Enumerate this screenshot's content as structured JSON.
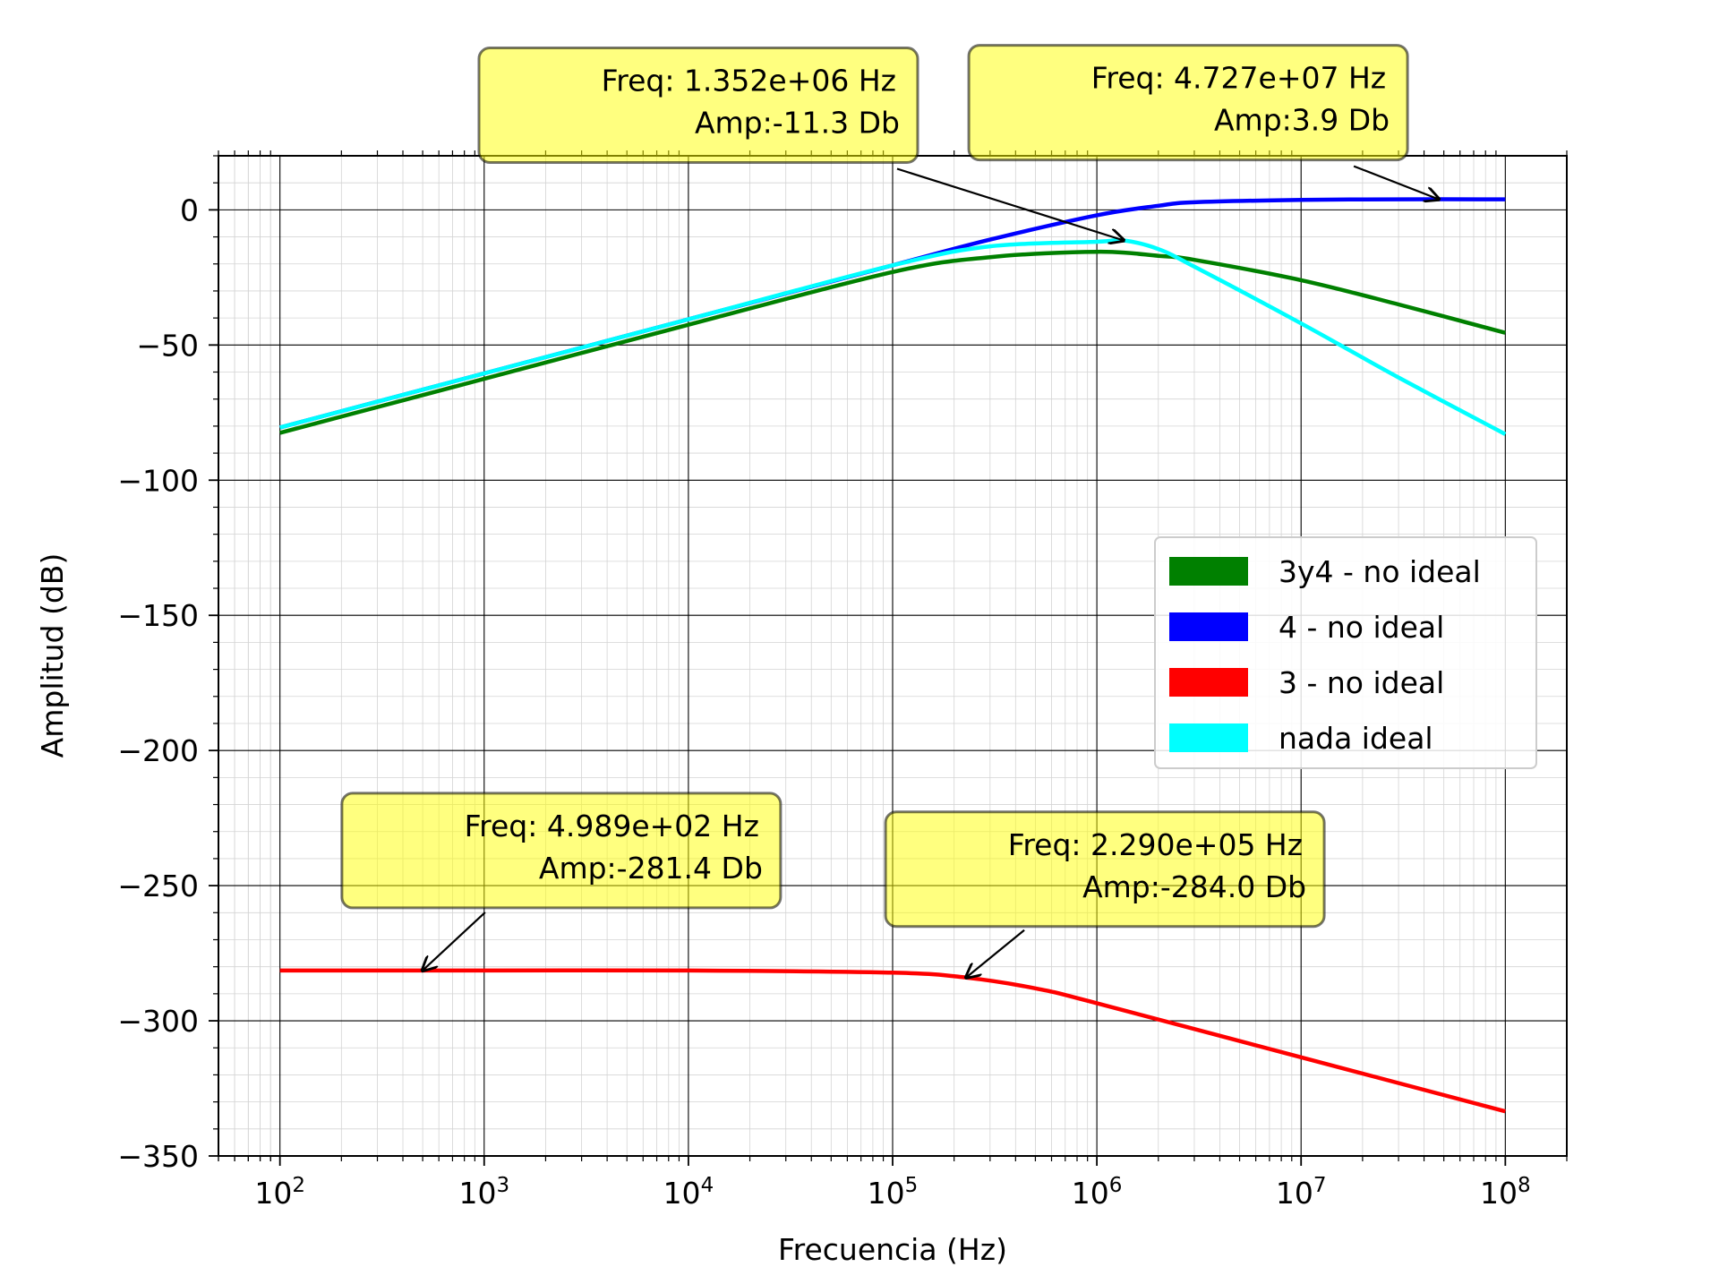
{
  "chart_data": {
    "type": "line",
    "xlabel": "Frecuencia (Hz)",
    "ylabel": "Amplitud (dB)",
    "x_scale": "log",
    "xlim": [
      50,
      200000000
    ],
    "ylim": [
      -350,
      20
    ],
    "grid": true,
    "legend_position": "right",
    "x_ticks": [
      {
        "value": 100,
        "base": "10",
        "exp": "2"
      },
      {
        "value": 1000,
        "base": "10",
        "exp": "3"
      },
      {
        "value": 10000,
        "base": "10",
        "exp": "4"
      },
      {
        "value": 100000,
        "base": "10",
        "exp": "5"
      },
      {
        "value": 1000000,
        "base": "10",
        "exp": "6"
      },
      {
        "value": 10000000,
        "base": "10",
        "exp": "7"
      },
      {
        "value": 100000000,
        "base": "10",
        "exp": "8"
      }
    ],
    "y_ticks": [
      {
        "value": 0,
        "label": "0"
      },
      {
        "value": -50,
        "label": "−50"
      },
      {
        "value": -100,
        "label": "−100"
      },
      {
        "value": -150,
        "label": "−150"
      },
      {
        "value": -200,
        "label": "−200"
      },
      {
        "value": -250,
        "label": "−250"
      },
      {
        "value": -300,
        "label": "−300"
      },
      {
        "value": -350,
        "label": "−350"
      }
    ],
    "series": [
      {
        "name": "3y4 - no ideal",
        "color": "#008000",
        "x": [
          100,
          1000,
          10000,
          100000,
          300000,
          1000000,
          2000000,
          3000000,
          10000000,
          30000000,
          100000000
        ],
        "y": [
          -82.5,
          -62.5,
          -42.5,
          -23,
          -17.5,
          -15.5,
          -17,
          -18.5,
          -26,
          -35,
          -45.5
        ]
      },
      {
        "name": "4 - no ideal",
        "color": "#0000ff",
        "x": [
          100,
          1000,
          10000,
          100000,
          300000,
          1000000,
          2000000,
          3000000,
          10000000,
          30000000,
          100000000
        ],
        "y": [
          -80.5,
          -60.5,
          -40.5,
          -20.5,
          -11,
          -2,
          1.5,
          2.8,
          3.7,
          3.9,
          3.9
        ]
      },
      {
        "name": "3 - no ideal",
        "color": "#ff0000",
        "x": [
          100,
          1000,
          10000,
          100000,
          229000,
          500000,
          1000000,
          10000000,
          100000000
        ],
        "y": [
          -281.4,
          -281.4,
          -281.4,
          -282.2,
          -284,
          -288,
          -293.5,
          -313.5,
          -333.5
        ]
      },
      {
        "name": "nada ideal",
        "color": "#00ffff",
        "x": [
          100,
          1000,
          10000,
          100000,
          300000,
          1000000,
          1352000,
          2000000,
          3000000,
          10000000,
          30000000,
          100000000
        ],
        "y": [
          -80.5,
          -60.5,
          -40.5,
          -20.5,
          -13.5,
          -11.8,
          -11.3,
          -14.5,
          -21,
          -42,
          -62,
          -83
        ]
      }
    ],
    "annotations": [
      {
        "text1": "Freq: 1.352e+06  Hz",
        "text2": "Amp:-11.3 Db",
        "x": 1352000,
        "y": -11.3
      },
      {
        "text1": "Freq: 4.727e+07  Hz",
        "text2": "Amp:3.9 Db",
        "x": 47270000,
        "y": 3.9
      },
      {
        "text1": "Freq: 4.989e+02  Hz",
        "text2": "Amp:-281.4 Db",
        "x": 498.9,
        "y": -281.4
      },
      {
        "text1": "Freq: 2.290e+05  Hz",
        "text2": "Amp:-284.0 Db",
        "x": 229000,
        "y": -284.0
      }
    ]
  }
}
